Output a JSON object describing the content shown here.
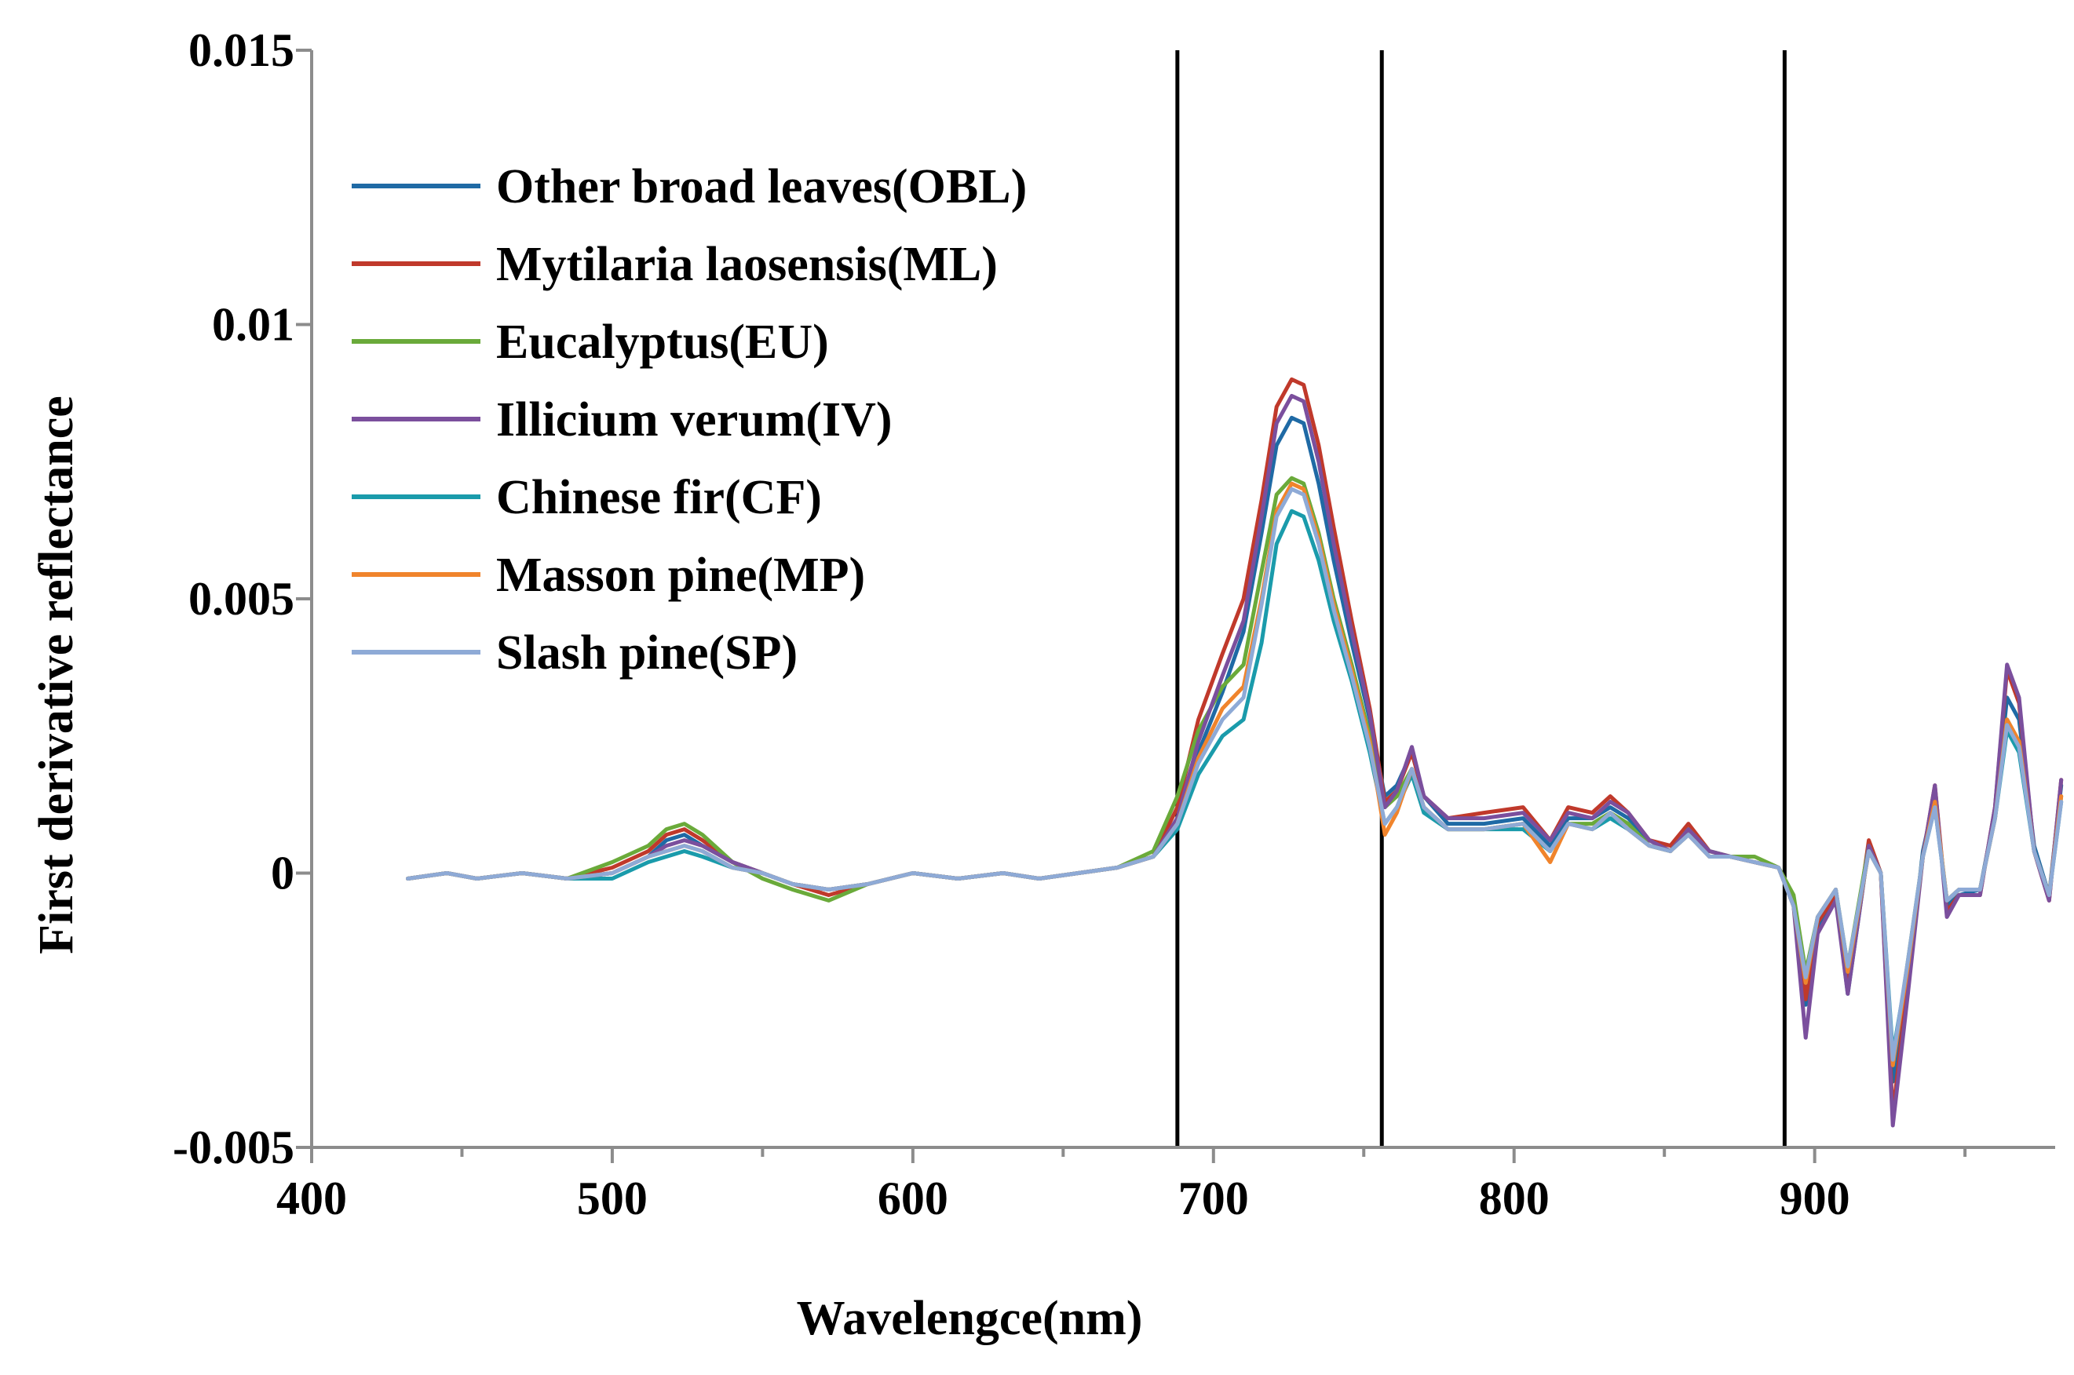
{
  "chart_data": {
    "type": "line",
    "title": "",
    "xlabel": "Wavelengce(nm)",
    "ylabel": "First derivative reflectance",
    "xlim": [
      400,
      980
    ],
    "ylim": [
      -0.005,
      0.015
    ],
    "x_ticks": [
      400,
      500,
      600,
      700,
      800,
      900
    ],
    "x_tick_labels": [
      "400",
      "500",
      "600",
      "700",
      "800",
      "900"
    ],
    "y_ticks": [
      -0.005,
      0,
      0.005,
      0.01,
      0.015
    ],
    "y_tick_labels": [
      "-0.005",
      "0",
      "0.005",
      "0.01",
      "0.015"
    ],
    "vertical_lines": [
      688,
      756,
      890
    ],
    "legend_position": "top-left",
    "x": [
      432,
      445,
      455,
      470,
      485,
      500,
      512,
      518,
      524,
      530,
      540,
      550,
      560,
      572,
      585,
      600,
      615,
      630,
      642,
      655,
      668,
      680,
      688,
      695,
      703,
      710,
      716,
      721,
      726,
      730,
      735,
      740,
      746,
      752,
      757,
      761,
      766,
      770,
      778,
      790,
      803,
      812,
      818,
      826,
      832,
      838,
      845,
      852,
      858,
      865,
      872,
      880,
      888,
      893,
      897,
      901,
      907,
      911,
      918,
      922,
      926,
      931,
      936,
      940,
      944,
      948,
      955,
      960,
      964,
      968,
      973,
      978,
      982
    ],
    "series": [
      {
        "name": "Other broad leaves(OBL)",
        "color": "#1f6aa5",
        "values": [
          -0.0001,
          0.0,
          -0.0001,
          0.0,
          -0.0001,
          0.0,
          0.0003,
          0.0006,
          0.0007,
          0.0005,
          0.0002,
          0.0,
          -0.0002,
          -0.0003,
          -0.0002,
          0.0,
          -0.0001,
          0.0,
          -0.0001,
          0.0,
          0.0001,
          0.0003,
          0.001,
          0.0022,
          0.0033,
          0.0044,
          0.0062,
          0.0078,
          0.0083,
          0.0082,
          0.0071,
          0.0057,
          0.0042,
          0.0028,
          0.0014,
          0.0016,
          0.0022,
          0.0014,
          0.0009,
          0.0009,
          0.001,
          0.0005,
          0.001,
          0.001,
          0.0012,
          0.001,
          0.0006,
          0.0004,
          0.0008,
          0.0004,
          0.0003,
          0.0002,
          0.0001,
          -0.0006,
          -0.0024,
          -0.001,
          -0.0004,
          -0.0022,
          0.0005,
          0.0,
          -0.0038,
          -0.002,
          0.0004,
          0.0014,
          -0.0006,
          -0.0004,
          -0.0003,
          0.0011,
          0.0032,
          0.0028,
          0.0005,
          -0.0004,
          0.0016
        ]
      },
      {
        "name": "Mytilaria laosensis(ML)",
        "color": "#c0392b",
        "values": [
          -0.0001,
          0.0,
          -0.0001,
          0.0,
          -0.0001,
          0.0001,
          0.0004,
          0.0007,
          0.0008,
          0.0006,
          0.0002,
          0.0,
          -0.0002,
          -0.0004,
          -0.0002,
          0.0,
          -0.0001,
          0.0,
          -0.0001,
          0.0,
          0.0001,
          0.0003,
          0.0012,
          0.0028,
          0.004,
          0.005,
          0.0068,
          0.0085,
          0.009,
          0.0089,
          0.0078,
          0.0063,
          0.0046,
          0.003,
          0.0013,
          0.0015,
          0.0022,
          0.0014,
          0.001,
          0.0011,
          0.0012,
          0.0006,
          0.0012,
          0.0011,
          0.0014,
          0.0011,
          0.0006,
          0.0005,
          0.0009,
          0.0004,
          0.0003,
          0.0002,
          0.0001,
          -0.0005,
          -0.0023,
          -0.0009,
          -0.0004,
          -0.0021,
          0.0006,
          0.0,
          -0.0044,
          -0.002,
          0.0003,
          0.0016,
          -0.0007,
          -0.0004,
          -0.0004,
          0.0012,
          0.0037,
          0.0031,
          0.0004,
          -0.0005,
          0.0017
        ]
      },
      {
        "name": "Eucalyptus(EU)",
        "color": "#6aaa3a",
        "values": [
          -0.0001,
          0.0,
          -0.0001,
          0.0,
          -0.0001,
          0.0002,
          0.0005,
          0.0008,
          0.0009,
          0.0007,
          0.0002,
          -0.0001,
          -0.0003,
          -0.0005,
          -0.0002,
          0.0,
          -0.0001,
          0.0,
          -0.0001,
          0.0,
          0.0001,
          0.0004,
          0.0014,
          0.0026,
          0.0034,
          0.0038,
          0.0055,
          0.0069,
          0.0072,
          0.0071,
          0.0062,
          0.005,
          0.0038,
          0.0025,
          0.0012,
          0.0014,
          0.0019,
          0.0012,
          0.0008,
          0.0008,
          0.0009,
          0.0004,
          0.0009,
          0.0009,
          0.0011,
          0.0009,
          0.0005,
          0.0004,
          0.0008,
          0.0004,
          0.0003,
          0.0003,
          0.0001,
          -0.0004,
          -0.0018,
          -0.0008,
          -0.0003,
          -0.0017,
          0.0005,
          0.0,
          -0.0035,
          -0.0016,
          0.0003,
          0.0013,
          -0.0005,
          -0.0003,
          -0.0003,
          0.001,
          0.0028,
          0.0024,
          0.0004,
          -0.0004,
          0.0014
        ]
      },
      {
        "name": "Illicium verum(IV)",
        "color": "#7b4f9d",
        "values": [
          -0.0001,
          0.0,
          -0.0001,
          0.0,
          -0.0001,
          0.0,
          0.0003,
          0.0005,
          0.0006,
          0.0005,
          0.0002,
          0.0,
          -0.0002,
          -0.0003,
          -0.0002,
          0.0,
          -0.0001,
          0.0,
          -0.0001,
          0.0,
          0.0001,
          0.0003,
          0.001,
          0.0024,
          0.0036,
          0.0046,
          0.0065,
          0.0082,
          0.0087,
          0.0086,
          0.0075,
          0.006,
          0.0044,
          0.0029,
          0.0012,
          0.0015,
          0.0023,
          0.0014,
          0.001,
          0.001,
          0.0011,
          0.0006,
          0.0011,
          0.001,
          0.0013,
          0.0011,
          0.0006,
          0.0004,
          0.0008,
          0.0004,
          0.0003,
          0.0002,
          0.0001,
          -0.0006,
          -0.003,
          -0.0011,
          -0.0005,
          -0.0022,
          0.0005,
          0.0,
          -0.0046,
          -0.0022,
          0.0003,
          0.0016,
          -0.0008,
          -0.0004,
          -0.0004,
          0.0012,
          0.0038,
          0.0032,
          0.0004,
          -0.0005,
          0.0017
        ]
      },
      {
        "name": "Chinese fir(CF)",
        "color": "#1a9bab",
        "values": [
          -0.0001,
          0.0,
          -0.0001,
          0.0,
          -0.0001,
          -0.0001,
          0.0002,
          0.0003,
          0.0004,
          0.0003,
          0.0001,
          0.0,
          -0.0002,
          -0.0003,
          -0.0002,
          0.0,
          -0.0001,
          0.0,
          -0.0001,
          0.0,
          0.0001,
          0.0003,
          0.0008,
          0.0018,
          0.0025,
          0.0028,
          0.0042,
          0.006,
          0.0066,
          0.0065,
          0.0057,
          0.0046,
          0.0035,
          0.0022,
          0.0009,
          0.0012,
          0.0018,
          0.0011,
          0.0008,
          0.0008,
          0.0008,
          0.0004,
          0.0009,
          0.0008,
          0.001,
          0.0008,
          0.0005,
          0.0004,
          0.0007,
          0.0003,
          0.0003,
          0.0002,
          0.0001,
          -0.0006,
          -0.002,
          -0.0008,
          -0.0003,
          -0.0018,
          0.0004,
          0.0,
          -0.0033,
          -0.0017,
          0.0003,
          0.0012,
          -0.0005,
          -0.0003,
          -0.0003,
          0.001,
          0.0026,
          0.0022,
          0.0004,
          -0.0004,
          0.0013
        ]
      },
      {
        "name": "Masson pine(MP)",
        "color": "#f0842c",
        "values": [
          -0.0001,
          0.0,
          -0.0001,
          0.0,
          -0.0001,
          0.0,
          0.0003,
          0.0004,
          0.0005,
          0.0004,
          0.0001,
          0.0,
          -0.0002,
          -0.0003,
          -0.0002,
          0.0,
          -0.0001,
          0.0,
          -0.0001,
          0.0,
          0.0001,
          0.0003,
          0.0009,
          0.0021,
          0.003,
          0.0034,
          0.005,
          0.0066,
          0.0071,
          0.007,
          0.0061,
          0.0049,
          0.0037,
          0.0024,
          0.0007,
          0.0011,
          0.0019,
          0.0012,
          0.0008,
          0.0008,
          0.0009,
          0.0002,
          0.0009,
          0.0008,
          0.0011,
          0.0008,
          0.0005,
          0.0004,
          0.0007,
          0.0003,
          0.0003,
          0.0002,
          0.0001,
          -0.0006,
          -0.002,
          -0.0008,
          -0.0003,
          -0.0018,
          0.0004,
          0.0,
          -0.0035,
          -0.0017,
          0.0003,
          0.0013,
          -0.0005,
          -0.0003,
          -0.0003,
          0.001,
          0.0028,
          0.0024,
          0.0004,
          -0.0004,
          0.0014
        ]
      },
      {
        "name": "Slash pine(SP)",
        "color": "#8eaad6",
        "values": [
          -0.0001,
          0.0,
          -0.0001,
          0.0,
          -0.0001,
          0.0,
          0.0003,
          0.0004,
          0.0005,
          0.0004,
          0.0001,
          0.0,
          -0.0002,
          -0.0003,
          -0.0002,
          0.0,
          -0.0001,
          0.0,
          -0.0001,
          0.0,
          0.0001,
          0.0003,
          0.0009,
          0.002,
          0.0028,
          0.0032,
          0.0049,
          0.0065,
          0.007,
          0.0069,
          0.006,
          0.0048,
          0.0036,
          0.0023,
          0.0009,
          0.0012,
          0.0019,
          0.0012,
          0.0008,
          0.0008,
          0.0009,
          0.0004,
          0.0009,
          0.0008,
          0.0011,
          0.0008,
          0.0005,
          0.0004,
          0.0007,
          0.0003,
          0.0003,
          0.0002,
          0.0001,
          -0.0006,
          -0.0019,
          -0.0008,
          -0.0003,
          -0.0017,
          0.0004,
          0.0,
          -0.0034,
          -0.0016,
          0.0003,
          0.0012,
          -0.0005,
          -0.0003,
          -0.0003,
          0.001,
          0.0027,
          0.0023,
          0.0004,
          -0.0004,
          0.0013
        ]
      }
    ]
  }
}
